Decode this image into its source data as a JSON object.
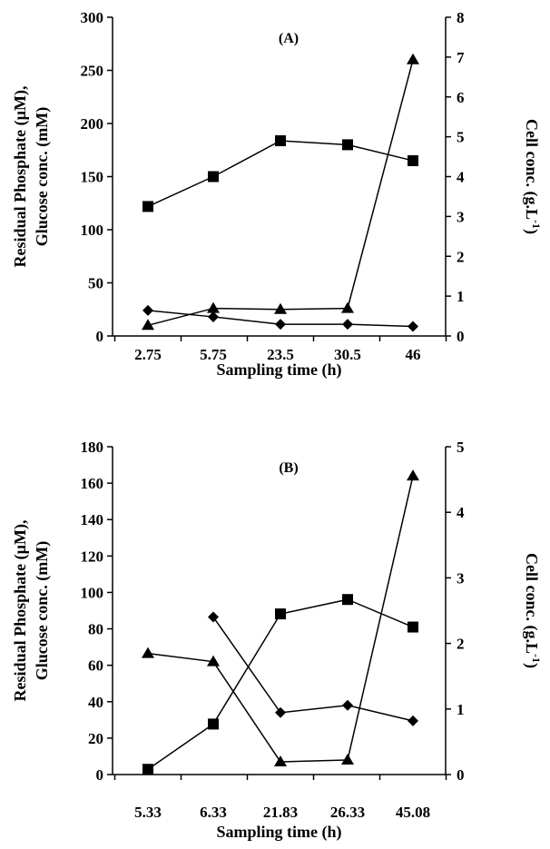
{
  "chart_data": [
    {
      "type": "line",
      "panel_label": "(A)",
      "categories": [
        "2.75",
        "5.75",
        "23.5",
        "30.5",
        "46"
      ],
      "xlabel": "Sampling time (h)",
      "ylabel_line1": "Residual Phosphate (µM),",
      "ylabel_line2": "Glucose conc. (mM)",
      "y2label": "Cell conc. (g.L-1)",
      "ylim": [
        0,
        300
      ],
      "y_ticks": [
        0,
        50,
        100,
        150,
        200,
        250,
        300
      ],
      "y2lim": [
        0,
        8
      ],
      "y2_ticks": [
        0,
        1,
        2,
        3,
        4,
        5,
        6,
        7,
        8
      ],
      "grid": false,
      "series": [
        {
          "marker": "square",
          "axis": "right",
          "values": [
            3.25,
            4.0,
            4.9,
            4.8,
            4.4
          ]
        },
        {
          "marker": "diamond",
          "axis": "left",
          "values": [
            24,
            18,
            11,
            11,
            9
          ]
        },
        {
          "marker": "triangle",
          "axis": "left",
          "values": [
            10,
            26,
            25,
            26,
            260
          ]
        }
      ]
    },
    {
      "type": "line",
      "panel_label": "(B)",
      "categories": [
        "5.33",
        "6.33",
        "21.83",
        "26.33",
        "45.08"
      ],
      "xlabel": "Sampling time (h)",
      "ylabel_line1": "Residual Phosphate (µM),",
      "ylabel_line2": "Glucose conc. (mM)",
      "y2label": "Cell conc. (g.L-1)",
      "ylim": [
        0,
        180
      ],
      "y_ticks": [
        0,
        20,
        40,
        60,
        80,
        100,
        120,
        140,
        160,
        180
      ],
      "y2lim": [
        0,
        5
      ],
      "y2_ticks": [
        0,
        1,
        2,
        3,
        4,
        5
      ],
      "grid": false,
      "series": [
        {
          "marker": "square",
          "axis": "right",
          "values": [
            0.08,
            0.77,
            2.45,
            2.67,
            2.25
          ]
        },
        {
          "marker": "diamond",
          "axis": "left",
          "values": [
            null,
            86.5,
            34,
            38,
            29.5
          ]
        },
        {
          "marker": "triangle",
          "axis": "left",
          "values": [
            66.5,
            62,
            7,
            8,
            164
          ]
        }
      ]
    }
  ]
}
